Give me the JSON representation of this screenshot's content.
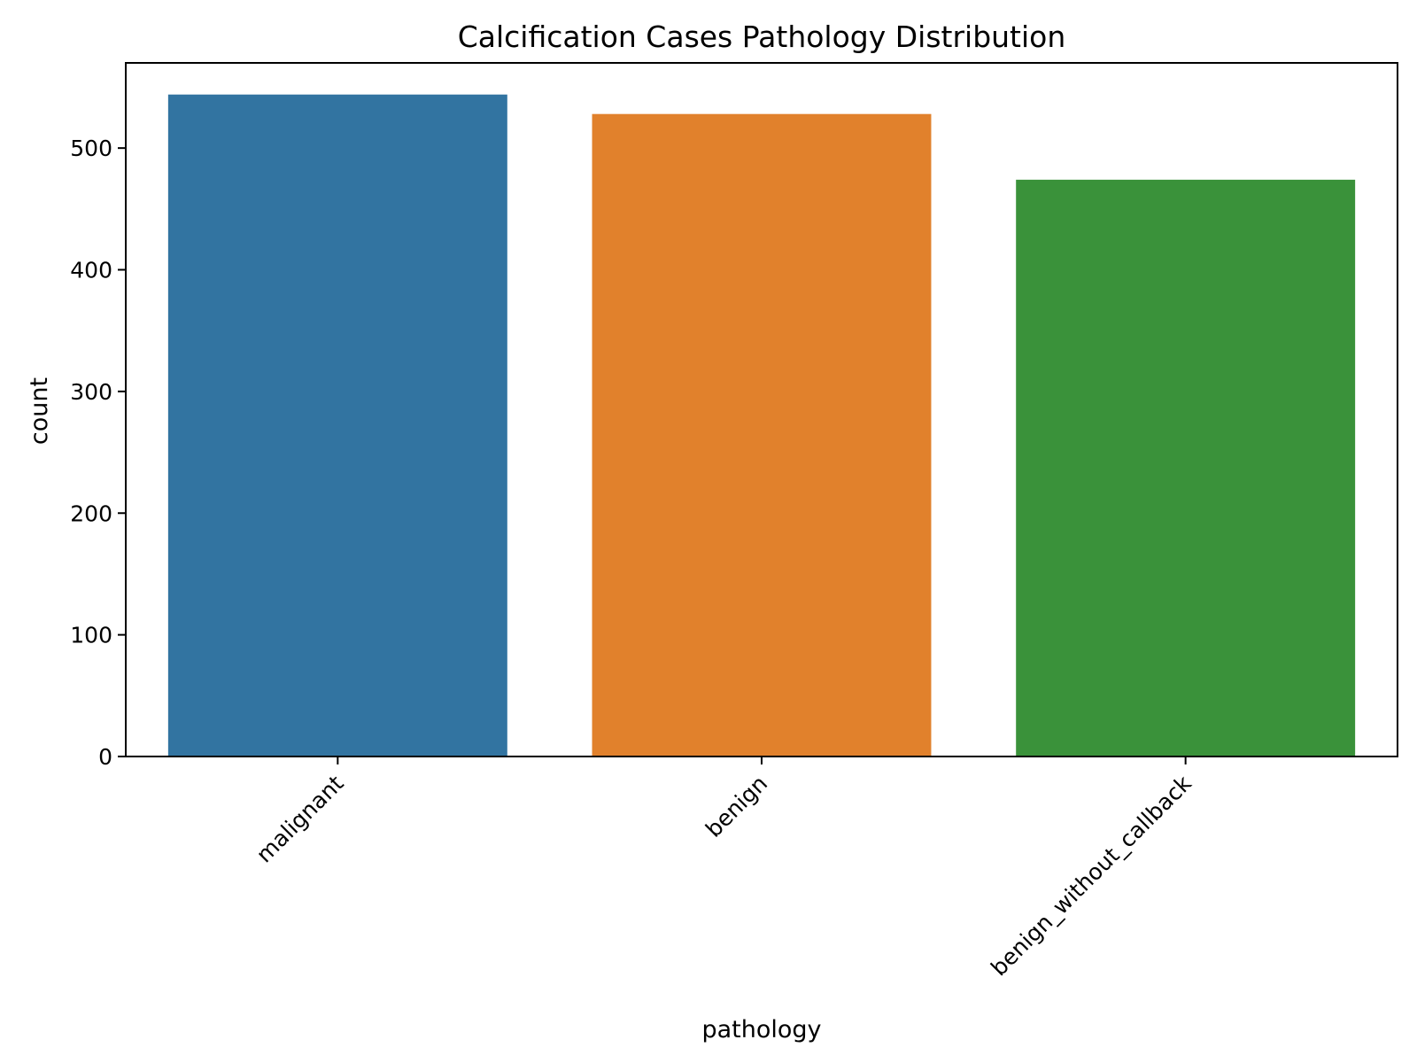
{
  "chart_data": {
    "type": "bar",
    "title": "Calcification Cases Pathology Distribution",
    "xlabel": "pathology",
    "ylabel": "count",
    "categories": [
      "malignant",
      "benign",
      "benign_without_callback"
    ],
    "values": [
      544,
      528,
      474
    ],
    "colors": [
      "#3274a1",
      "#e1812c",
      "#3a923a"
    ],
    "ylim": [
      0,
      570
    ],
    "yticks": [
      0,
      100,
      200,
      300,
      400,
      500
    ],
    "grid": false,
    "legend": "none"
  }
}
